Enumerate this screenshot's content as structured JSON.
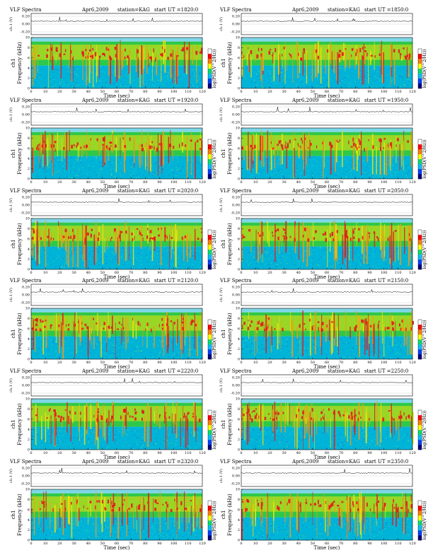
{
  "colors": {
    "background_low": "#00b4d8",
    "spectrum_mid": "#2ec84a",
    "spectrum_high": "#f2e20a",
    "spectrum_peak": "#e41a1c",
    "top_band": "#7fd6e8",
    "colorbar": [
      "#000080",
      "#0040ff",
      "#00c0ff",
      "#00e070",
      "#ffff00",
      "#ff8000",
      "#ff0000",
      "#ffffff"
    ]
  },
  "common": {
    "title": "VLF Spectra",
    "date": "Apr6,2009",
    "station": "station=KAG",
    "start_prefix": "start  UT  =",
    "time_label": "Time  (sec)",
    "freq_label": "Frequency  (kHz)",
    "channel_label": "ch1",
    "amp_label": "ch.1 (V)",
    "cbar_label": "log(PSD(V^2/Hz))",
    "x_ticks": [
      "0",
      "10",
      "20",
      "30",
      "40",
      "50",
      "60",
      "70",
      "80",
      "90",
      "100",
      "110",
      "120"
    ],
    "y_ticks": [
      "0",
      "2",
      "4",
      "6",
      "8",
      "10"
    ],
    "amp_ticks": [
      "0.20",
      "0.00",
      "-0.20"
    ]
  },
  "chart_data": [
    {
      "type": "heatmap",
      "start_ut": "1820:0",
      "xlim": [
        0,
        120
      ],
      "ylim": [
        0,
        10
      ],
      "xlabel": "Time  (sec)",
      "ylabel": "Frequency  (kHz)"
    },
    {
      "type": "heatmap",
      "start_ut": "1850:0",
      "xlim": [
        0,
        120
      ],
      "ylim": [
        0,
        10
      ],
      "xlabel": "Time  (sec)",
      "ylabel": "Frequency  (kHz)"
    },
    {
      "type": "heatmap",
      "start_ut": "1920:0",
      "xlim": [
        0,
        120
      ],
      "ylim": [
        0,
        10
      ],
      "xlabel": "Time  (sec)",
      "ylabel": "Frequency  (kHz)"
    },
    {
      "type": "heatmap",
      "start_ut": "1950:0",
      "xlim": [
        0,
        120
      ],
      "ylim": [
        0,
        10
      ],
      "xlabel": "Time  (sec)",
      "ylabel": "Frequency  (kHz)"
    },
    {
      "type": "heatmap",
      "start_ut": "2020:0",
      "xlim": [
        0,
        120
      ],
      "ylim": [
        0,
        10
      ],
      "xlabel": "Time  (sec)",
      "ylabel": "Frequency  (kHz)"
    },
    {
      "type": "heatmap",
      "start_ut": "2050:0",
      "xlim": [
        0,
        120
      ],
      "ylim": [
        0,
        10
      ],
      "xlabel": "Time  (sec)",
      "ylabel": "Frequency  (kHz)"
    },
    {
      "type": "heatmap",
      "start_ut": "2120:0",
      "xlim": [
        0,
        120
      ],
      "ylim": [
        0,
        10
      ],
      "xlabel": "Time  (sec)",
      "ylabel": "Frequency  (kHz)"
    },
    {
      "type": "heatmap",
      "start_ut": "2150:0",
      "xlim": [
        0,
        120
      ],
      "ylim": [
        0,
        10
      ],
      "xlabel": "Time  (sec)",
      "ylabel": "Frequency  (kHz)"
    },
    {
      "type": "heatmap",
      "start_ut": "2220:0",
      "xlim": [
        0,
        120
      ],
      "ylim": [
        0,
        10
      ],
      "xlabel": "Time  (sec)",
      "ylabel": "Frequency  (kHz)"
    },
    {
      "type": "heatmap",
      "start_ut": "2250:0",
      "xlim": [
        0,
        120
      ],
      "ylim": [
        0,
        10
      ],
      "xlabel": "Time  (sec)",
      "ylabel": "Frequency  (kHz)"
    },
    {
      "type": "heatmap",
      "start_ut": "2320:0",
      "xlim": [
        0,
        120
      ],
      "ylim": [
        0,
        10
      ],
      "xlabel": "Time  (sec)",
      "ylabel": "Frequency  (kHz)"
    },
    {
      "type": "heatmap",
      "start_ut": "2350:0",
      "xlim": [
        0,
        120
      ],
      "ylim": [
        0,
        10
      ],
      "xlabel": "Time  (sec)",
      "ylabel": "Frequency  (kHz)"
    }
  ]
}
